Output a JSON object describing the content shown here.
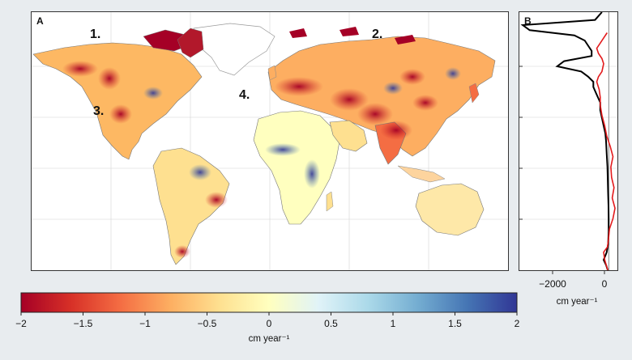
{
  "panel_a": {
    "label": "A",
    "annotations": [
      "1.",
      "2.",
      "3.",
      "4."
    ]
  },
  "panel_b": {
    "label": "B",
    "x_ticks": [
      "−2000",
      "0"
    ],
    "x_unit": "cm year⁻¹",
    "colors": {
      "series1": "#000000",
      "series2": "#e31a1c"
    }
  },
  "colorbar": {
    "ticks": [
      "−2",
      "−1.5",
      "−1",
      "−0.5",
      "0",
      "0.5",
      "1",
      "1.5",
      "2"
    ],
    "unit": "cm year⁻¹",
    "colors": [
      "#a50026",
      "#d73027",
      "#f46d43",
      "#fdae61",
      "#fee090",
      "#ffffbf",
      "#e0f3f8",
      "#abd9e9",
      "#74add1",
      "#4575b4",
      "#313695"
    ]
  },
  "chart_data": {
    "type": "line",
    "x_range": [
      -2600,
      250
    ],
    "series": [
      {
        "color": "#000000",
        "profile": [
          [
            0.0,
            -200
          ],
          [
            0.03,
            -400
          ],
          [
            0.05,
            -2500
          ],
          [
            0.07,
            -2300
          ],
          [
            0.09,
            -1000
          ],
          [
            0.11,
            -700
          ],
          [
            0.13,
            -600
          ],
          [
            0.15,
            -500
          ],
          [
            0.17,
            -500
          ],
          [
            0.19,
            -1300
          ],
          [
            0.21,
            -1500
          ],
          [
            0.23,
            -800
          ],
          [
            0.25,
            -600
          ],
          [
            0.27,
            -450
          ],
          [
            0.29,
            -450
          ],
          [
            0.32,
            -350
          ],
          [
            0.35,
            -250
          ],
          [
            0.38,
            -250
          ],
          [
            0.41,
            -200
          ],
          [
            0.44,
            -150
          ],
          [
            0.47,
            -100
          ],
          [
            0.5,
            -80
          ],
          [
            0.55,
            -60
          ],
          [
            0.6,
            -40
          ],
          [
            0.65,
            -30
          ],
          [
            0.7,
            -20
          ],
          [
            0.75,
            -10
          ],
          [
            0.8,
            -5
          ],
          [
            0.85,
            -5
          ],
          [
            0.9,
            -20
          ],
          [
            0.93,
            -60
          ],
          [
            0.96,
            -150
          ],
          [
            0.98,
            -80
          ],
          [
            1.0,
            -30
          ]
        ]
      },
      {
        "color": "#e31a1c",
        "profile": [
          [
            0.08,
            -50
          ],
          [
            0.1,
            -150
          ],
          [
            0.12,
            -250
          ],
          [
            0.14,
            -350
          ],
          [
            0.16,
            -300
          ],
          [
            0.18,
            -200
          ],
          [
            0.2,
            -150
          ],
          [
            0.23,
            -200
          ],
          [
            0.25,
            -300
          ],
          [
            0.27,
            -350
          ],
          [
            0.3,
            -280
          ],
          [
            0.33,
            -250
          ],
          [
            0.36,
            -250
          ],
          [
            0.4,
            -200
          ],
          [
            0.44,
            -120
          ],
          [
            0.48,
            -60
          ],
          [
            0.52,
            40
          ],
          [
            0.56,
            120
          ],
          [
            0.6,
            60
          ],
          [
            0.64,
            80
          ],
          [
            0.68,
            150
          ],
          [
            0.72,
            100
          ],
          [
            0.76,
            180
          ],
          [
            0.8,
            120
          ],
          [
            0.84,
            20
          ],
          [
            0.88,
            -10
          ],
          [
            0.91,
            -40
          ],
          [
            0.93,
            -150
          ],
          [
            0.96,
            -120
          ],
          [
            1.0,
            -30
          ]
        ]
      }
    ]
  }
}
